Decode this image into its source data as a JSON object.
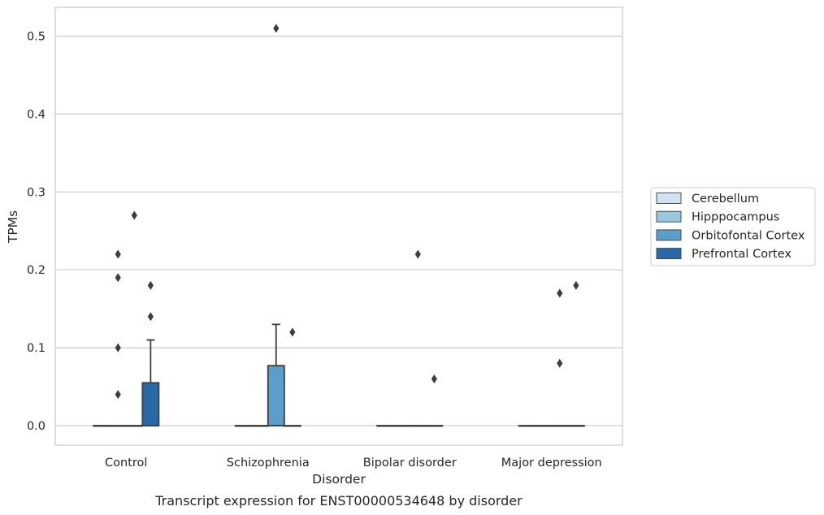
{
  "chart_data": {
    "type": "box",
    "title": "",
    "caption": "Transcript expression for ENST00000534648 by disorder",
    "xlabel": "Disorder",
    "ylabel": "TPMs",
    "ylim": [
      -0.025,
      0.537
    ],
    "yticks": [
      0.0,
      0.1,
      0.2,
      0.3,
      0.4,
      0.5
    ],
    "ytick_labels": [
      "0.0",
      "0.1",
      "0.2",
      "0.3",
      "0.4",
      "0.5"
    ],
    "grid": "horizontal",
    "legend_position": "right",
    "categories": [
      "Control",
      "Schizophrenia",
      "Bipolar disorder",
      "Major depression"
    ],
    "series": [
      {
        "name": "Cerebellum",
        "color": "#d1e3f2",
        "boxes": [
          {
            "q1": 0,
            "median": 0,
            "q3": 0,
            "whisker_low": 0,
            "whisker_high": 0,
            "outliers": []
          },
          {
            "q1": 0,
            "median": 0,
            "q3": 0,
            "whisker_low": 0,
            "whisker_high": 0,
            "outliers": []
          },
          {
            "q1": 0,
            "median": 0,
            "q3": 0,
            "whisker_low": 0,
            "whisker_high": 0,
            "outliers": []
          },
          {
            "q1": 0,
            "median": 0,
            "q3": 0,
            "whisker_low": 0,
            "whisker_high": 0,
            "outliers": []
          }
        ]
      },
      {
        "name": "Hipppocampus",
        "color": "#9ac8e0",
        "boxes": [
          {
            "q1": 0,
            "median": 0,
            "q3": 0,
            "whisker_low": 0,
            "whisker_high": 0,
            "outliers": [
              0.22,
              0.19,
              0.1,
              0.04
            ]
          },
          {
            "q1": 0,
            "median": 0,
            "q3": 0,
            "whisker_low": 0,
            "whisker_high": 0,
            "outliers": []
          },
          {
            "q1": 0,
            "median": 0,
            "q3": 0,
            "whisker_low": 0,
            "whisker_high": 0,
            "outliers": []
          },
          {
            "q1": 0,
            "median": 0,
            "q3": 0,
            "whisker_low": 0,
            "whisker_high": 0,
            "outliers": []
          }
        ]
      },
      {
        "name": "Orbitofontal Cortex",
        "color": "#5b9ec9",
        "boxes": [
          {
            "q1": 0,
            "median": 0,
            "q3": 0,
            "whisker_low": 0,
            "whisker_high": 0,
            "outliers": [
              0.27
            ]
          },
          {
            "q1": 0,
            "median": 0,
            "q3": 0.077,
            "whisker_low": 0,
            "whisker_high": 0.13,
            "outliers": [
              0.51
            ]
          },
          {
            "q1": 0,
            "median": 0,
            "q3": 0,
            "whisker_low": 0,
            "whisker_high": 0,
            "outliers": [
              0.22
            ]
          },
          {
            "q1": 0,
            "median": 0,
            "q3": 0,
            "whisker_low": 0,
            "whisker_high": 0,
            "outliers": [
              0.17,
              0.08
            ]
          }
        ]
      },
      {
        "name": "Prefrontal Cortex",
        "color": "#2a69a8",
        "boxes": [
          {
            "q1": 0,
            "median": 0,
            "q3": 0.055,
            "whisker_low": 0,
            "whisker_high": 0.11,
            "outliers": [
              0.18,
              0.14
            ]
          },
          {
            "q1": 0,
            "median": 0,
            "q3": 0,
            "whisker_low": 0,
            "whisker_high": 0,
            "outliers": [
              0.12
            ]
          },
          {
            "q1": 0,
            "median": 0,
            "q3": 0,
            "whisker_low": 0,
            "whisker_high": 0,
            "outliers": [
              0.06
            ]
          },
          {
            "q1": 0,
            "median": 0,
            "q3": 0,
            "whisker_low": 0,
            "whisker_high": 0,
            "outliers": [
              0.18
            ]
          }
        ]
      }
    ]
  }
}
